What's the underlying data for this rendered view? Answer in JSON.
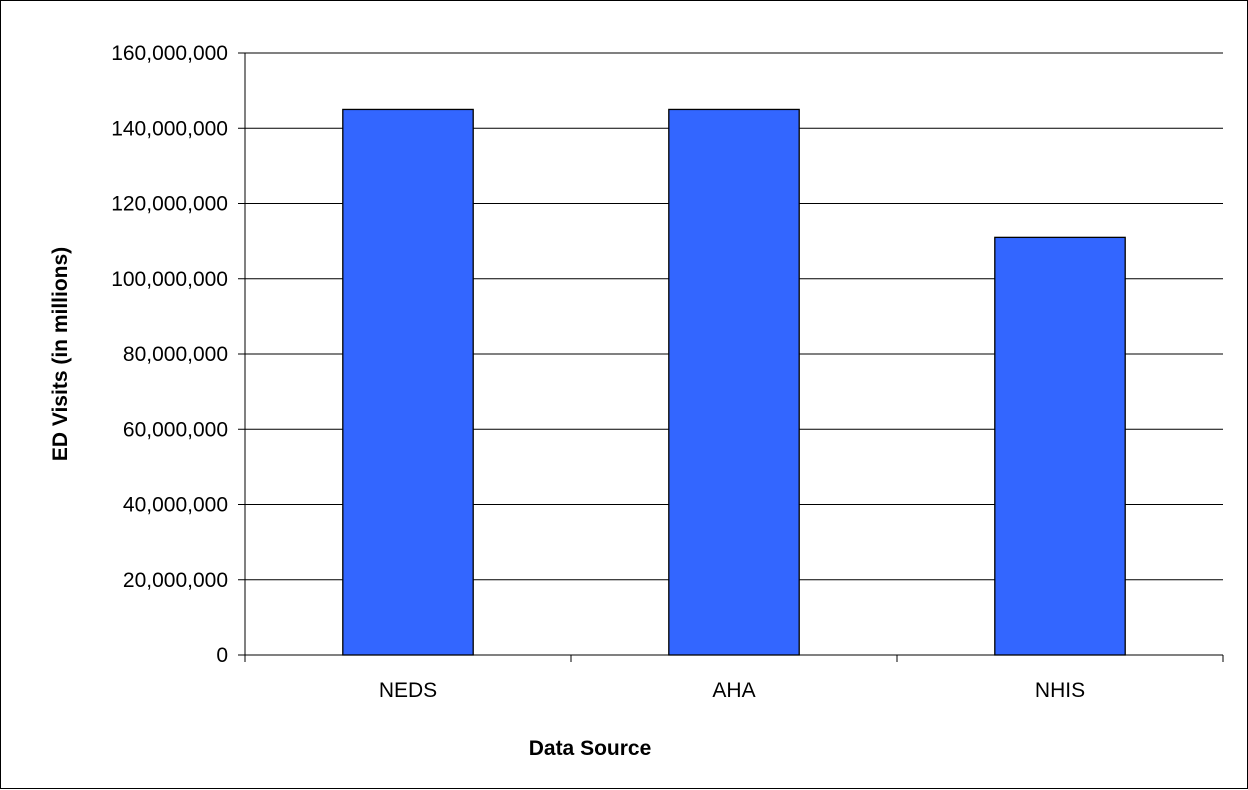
{
  "chart_data": {
    "type": "bar",
    "title": "",
    "xlabel": "Data Source",
    "ylabel": "ED Visits (in millions)",
    "categories": [
      "NEDS",
      "AHA",
      "NHIS"
    ],
    "values": [
      145000000,
      145000000,
      111000000
    ],
    "ylim": [
      0,
      160000000
    ],
    "yticks": [
      0,
      20000000,
      40000000,
      60000000,
      80000000,
      100000000,
      120000000,
      140000000,
      160000000
    ],
    "ytick_labels": [
      "0",
      "20,000,000",
      "40,000,000",
      "60,000,000",
      "80,000,000",
      "100,000,000",
      "120,000,000",
      "140,000,000",
      "160,000,000"
    ],
    "grid": true,
    "legend": "none",
    "bar_color": "#3366FF",
    "plot_background": "#FFFFFF",
    "gridline_color": "#000000"
  }
}
